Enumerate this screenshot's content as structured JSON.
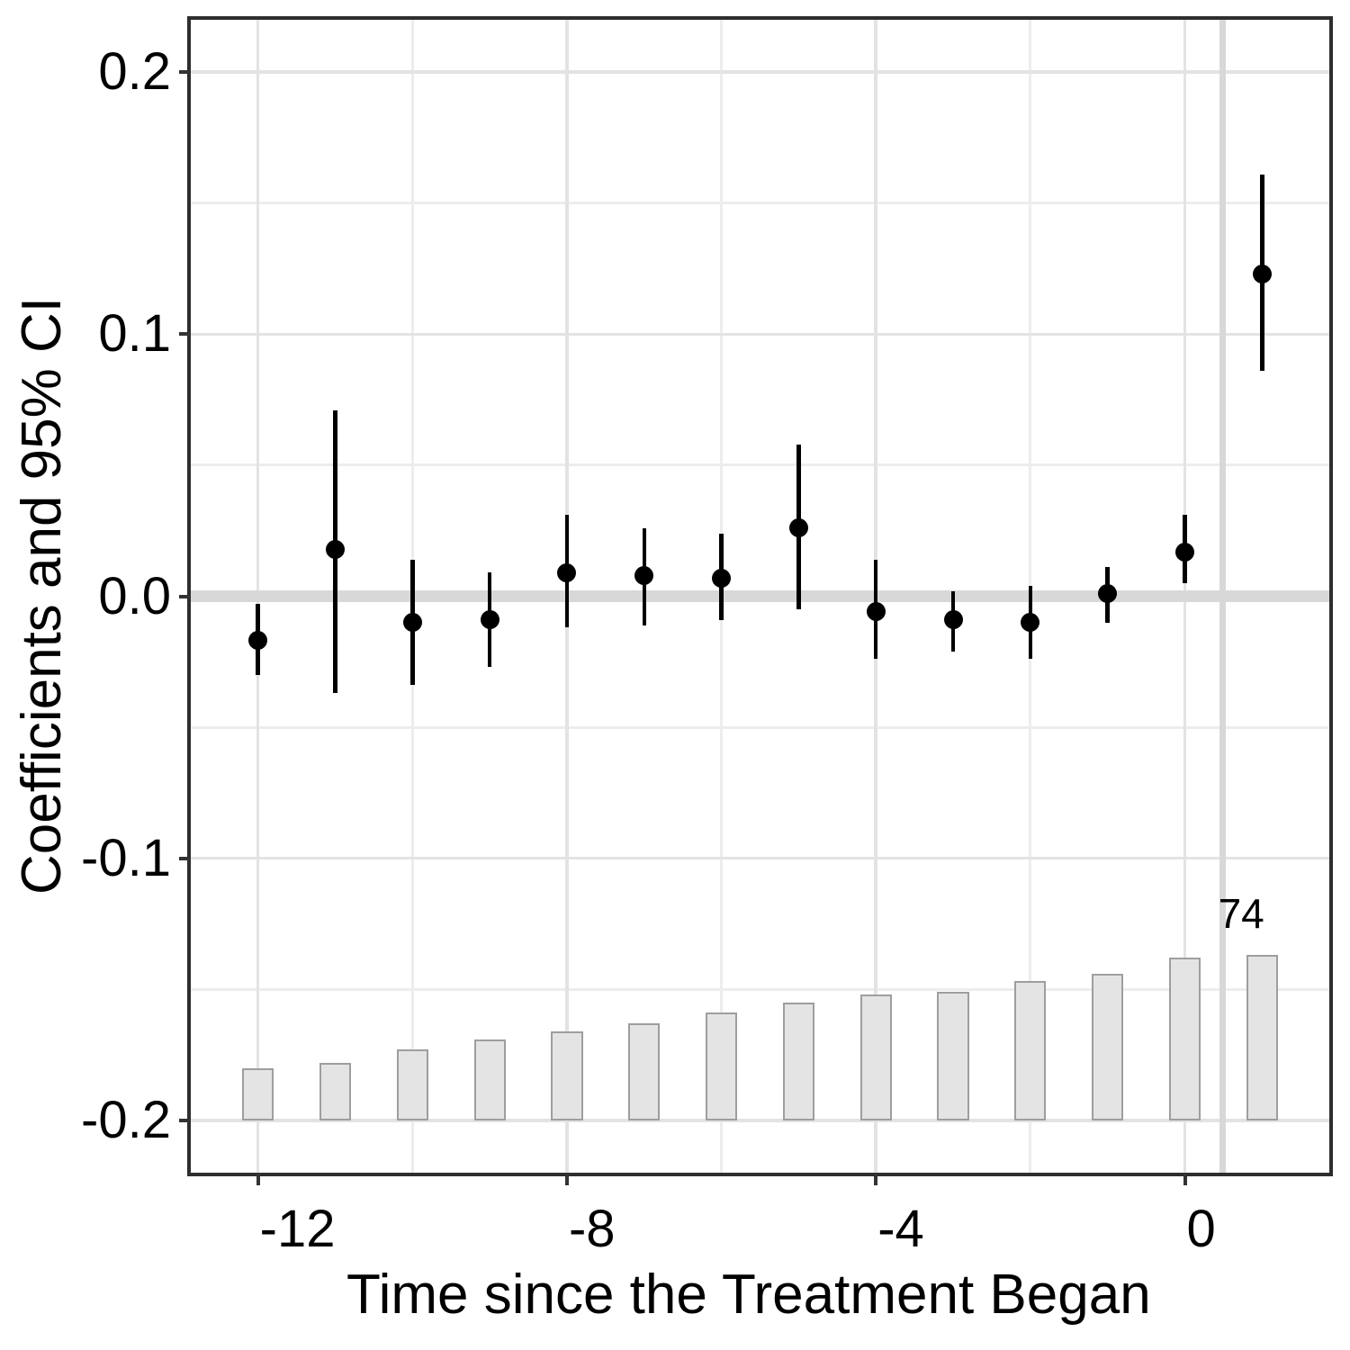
{
  "chart_data": {
    "type": "dot-whisker",
    "description": "Event-study coefficients with 95% confidence intervals and a light gray bar chart of observation counts along the bottom",
    "x_axis": {
      "title": "Time since the Treatment Began",
      "ticks": [
        {
          "value": -12,
          "label": "-12"
        },
        {
          "value": -8,
          "label": "-8"
        },
        {
          "value": -4,
          "label": "-4"
        },
        {
          "value": 0,
          "label": "0"
        }
      ],
      "minor_ticks": [
        -10,
        -6,
        -2
      ],
      "lim": [
        -12.87,
        1.87
      ]
    },
    "y_axis": {
      "title": "Coefficients and 95% CI",
      "ticks": [
        {
          "value": 0.2,
          "label": "0.2"
        },
        {
          "value": 0.1,
          "label": "0.1"
        },
        {
          "value": 0.0,
          "label": "0.0"
        },
        {
          "value": -0.1,
          "label": "-0.1"
        },
        {
          "value": -0.2,
          "label": "-0.2"
        }
      ],
      "minor_ticks": [
        0.15,
        0.05,
        -0.05,
        -0.15
      ],
      "lim": [
        -0.22,
        0.22
      ]
    },
    "reference_lines": {
      "horizontal_y": 0,
      "vertical_x": 0.49
    },
    "series": [
      {
        "t": -12,
        "estimate": -0.017,
        "ci_low": -0.03,
        "ci_high": -0.003,
        "bar_top": -0.18
      },
      {
        "t": -11,
        "estimate": 0.018,
        "ci_low": -0.037,
        "ci_high": 0.071,
        "bar_top": -0.178
      },
      {
        "t": -10,
        "estimate": -0.01,
        "ci_low": -0.034,
        "ci_high": 0.014,
        "bar_top": -0.173
      },
      {
        "t": -9,
        "estimate": -0.009,
        "ci_low": -0.027,
        "ci_high": 0.009,
        "bar_top": -0.169
      },
      {
        "t": -8,
        "estimate": 0.009,
        "ci_low": -0.012,
        "ci_high": 0.031,
        "bar_top": -0.166
      },
      {
        "t": -7,
        "estimate": 0.008,
        "ci_low": -0.011,
        "ci_high": 0.026,
        "bar_top": -0.163
      },
      {
        "t": -6,
        "estimate": 0.007,
        "ci_low": -0.009,
        "ci_high": 0.024,
        "bar_top": -0.159
      },
      {
        "t": -5,
        "estimate": 0.026,
        "ci_low": -0.005,
        "ci_high": 0.058,
        "bar_top": -0.155
      },
      {
        "t": -4,
        "estimate": -0.006,
        "ci_low": -0.024,
        "ci_high": 0.014,
        "bar_top": -0.152
      },
      {
        "t": -3,
        "estimate": -0.009,
        "ci_low": -0.021,
        "ci_high": 0.002,
        "bar_top": -0.151
      },
      {
        "t": -2,
        "estimate": -0.01,
        "ci_low": -0.024,
        "ci_high": 0.004,
        "bar_top": -0.147
      },
      {
        "t": -1,
        "estimate": 0.001,
        "ci_low": -0.01,
        "ci_high": 0.011,
        "bar_top": -0.144
      },
      {
        "t": 0,
        "estimate": 0.017,
        "ci_low": 0.005,
        "ci_high": 0.031,
        "bar_top": -0.138
      },
      {
        "t": 1,
        "estimate": 0.123,
        "ci_low": 0.086,
        "ci_high": 0.161,
        "bar_top": -0.137
      }
    ],
    "bars": {
      "bottom": -0.2,
      "width": 0.41
    },
    "annotation": {
      "text": "74",
      "t": 0.73,
      "v": -0.121
    },
    "colors": {
      "point": "#000000",
      "bar_fill": "#e4e4e4",
      "bar_border": "#9e9e9e",
      "grid_major": "#e3e3e3",
      "grid_minor": "#ededed",
      "reference_line": "#d8d8d8",
      "panel_border": "#2e2e2e",
      "tick_mark": "#333333",
      "text": "#000000",
      "background": "#ffffff"
    },
    "legend": "none",
    "grid": "on"
  }
}
